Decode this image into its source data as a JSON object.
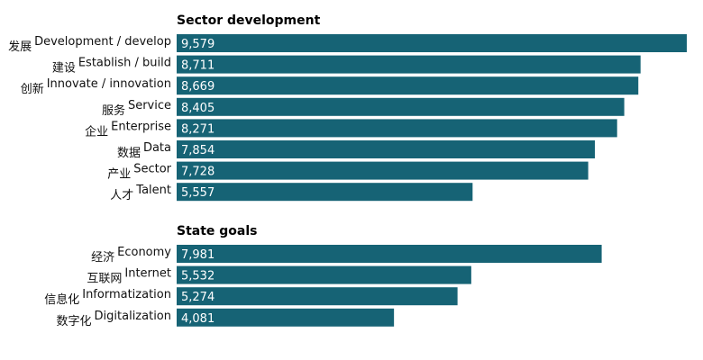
{
  "chart_data": {
    "type": "bar",
    "orientation": "horizontal",
    "value_format": "thousands-comma",
    "bar_color": "#166375",
    "groups": [
      {
        "title": "Sector development",
        "items": [
          {
            "zh": "发展",
            "en": "Development / develop",
            "value": 9579,
            "label": "9,579"
          },
          {
            "zh": "建设",
            "en": "Establish / build",
            "value": 8711,
            "label": "8,711"
          },
          {
            "zh": "创新",
            "en": "Innovate / innovation",
            "value": 8669,
            "label": "8,669"
          },
          {
            "zh": "服务",
            "en": "Service",
            "value": 8405,
            "label": "8,405"
          },
          {
            "zh": "企业",
            "en": "Enterprise",
            "value": 8271,
            "label": "8,271"
          },
          {
            "zh": "数据",
            "en": "Data",
            "value": 7854,
            "label": "7,854"
          },
          {
            "zh": "产业",
            "en": "Sector",
            "value": 7728,
            "label": "7,728"
          },
          {
            "zh": "人才",
            "en": "Talent",
            "value": 5557,
            "label": "5,557"
          }
        ]
      },
      {
        "title": "State goals",
        "items": [
          {
            "zh": "经济",
            "en": "Economy",
            "value": 7981,
            "label": "7,981"
          },
          {
            "zh": "互联网",
            "en": "Internet",
            "value": 5532,
            "label": "5,532"
          },
          {
            "zh": "信息化",
            "en": "Informatization",
            "value": 5274,
            "label": "5,274"
          },
          {
            "zh": "数字化",
            "en": "Digitalization",
            "value": 4081,
            "label": "4,081"
          }
        ]
      }
    ]
  }
}
